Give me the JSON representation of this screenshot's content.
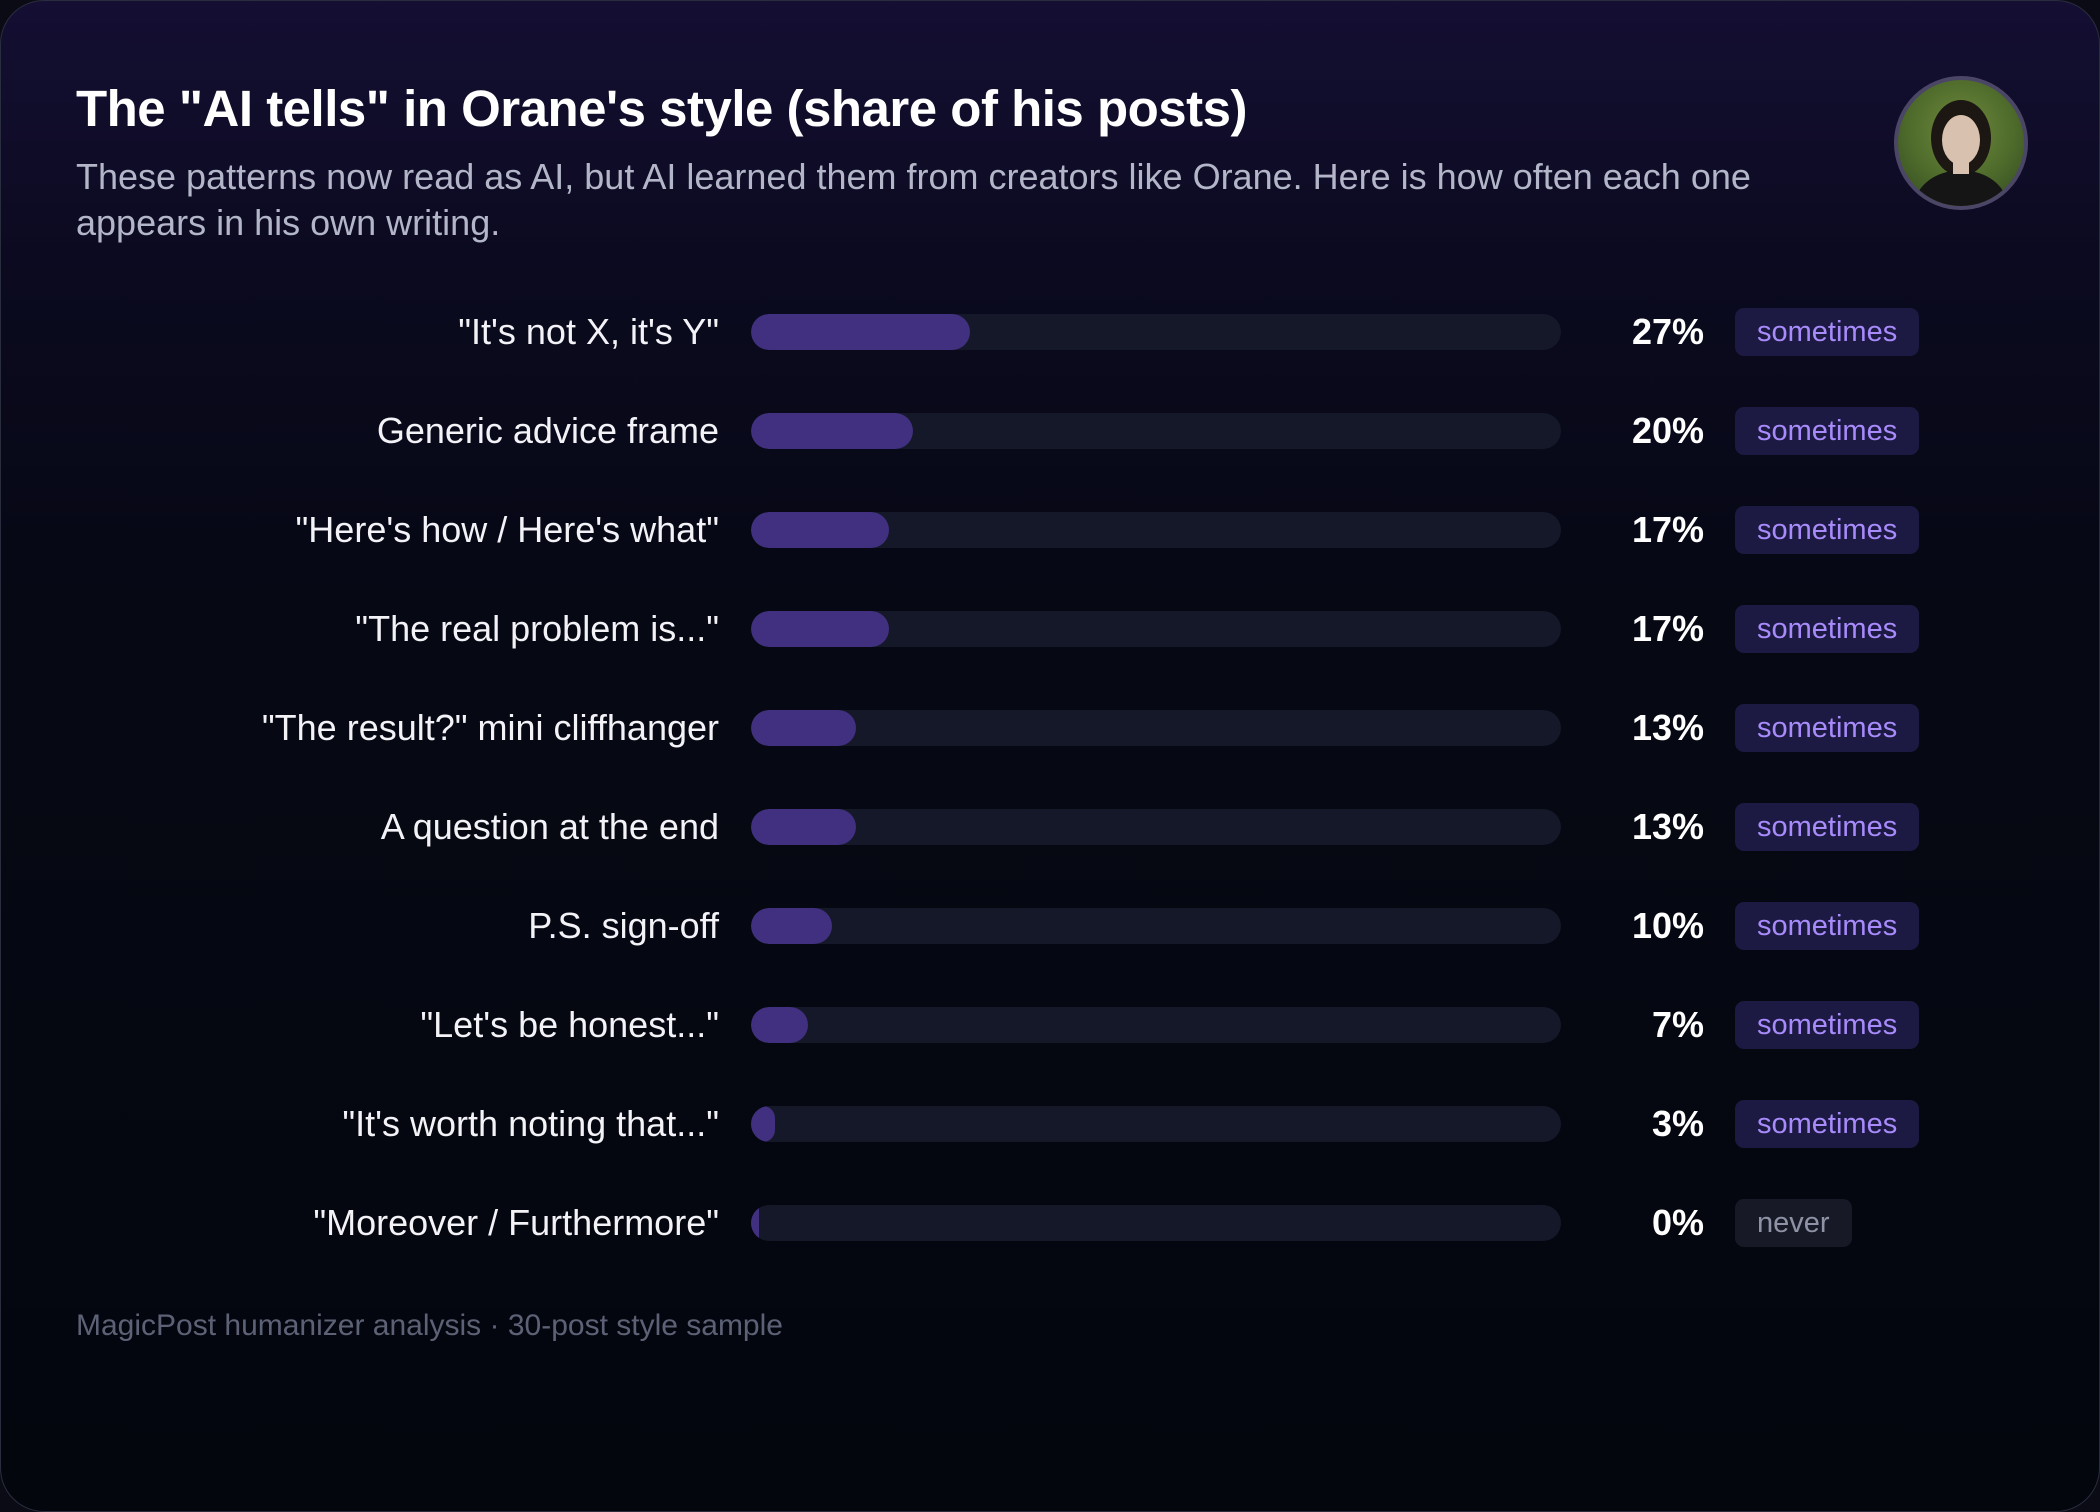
{
  "header": {
    "title": "The \"AI tells\" in Orane's style (share of his posts)",
    "subtitle": "These patterns now read as AI, but AI learned them from creators like Orane. Here is how often each one appears in his own writing."
  },
  "avatar_icon": "profile-photo",
  "chart_data": {
    "type": "bar",
    "orientation": "horizontal",
    "categories": [
      "\"It's not X, it's Y\"",
      "Generic advice frame",
      "\"Here's how / Here's what\"",
      "\"The real problem is...\"",
      "\"The result?\" mini cliffhanger",
      "A question at the end",
      "P.S. sign-off",
      "\"Let's be honest...\"",
      "\"It's worth noting that...\"",
      "\"Moreover / Furthermore\""
    ],
    "values": [
      27,
      20,
      17,
      17,
      13,
      13,
      10,
      7,
      3,
      0
    ],
    "value_labels": [
      "27%",
      "20%",
      "17%",
      "17%",
      "13%",
      "13%",
      "10%",
      "7%",
      "3%",
      "0%"
    ],
    "frequency_labels": [
      "sometimes",
      "sometimes",
      "sometimes",
      "sometimes",
      "sometimes",
      "sometimes",
      "sometimes",
      "sometimes",
      "sometimes",
      "never"
    ],
    "xlim": [
      0,
      100
    ],
    "colors": {
      "bar": "#41307f",
      "track": "#141828",
      "sometimes_text": "#a78bfa",
      "never_text": "#8e92a4"
    }
  },
  "footer": {
    "source": "MagicPost humanizer analysis · 30-post style sample"
  }
}
